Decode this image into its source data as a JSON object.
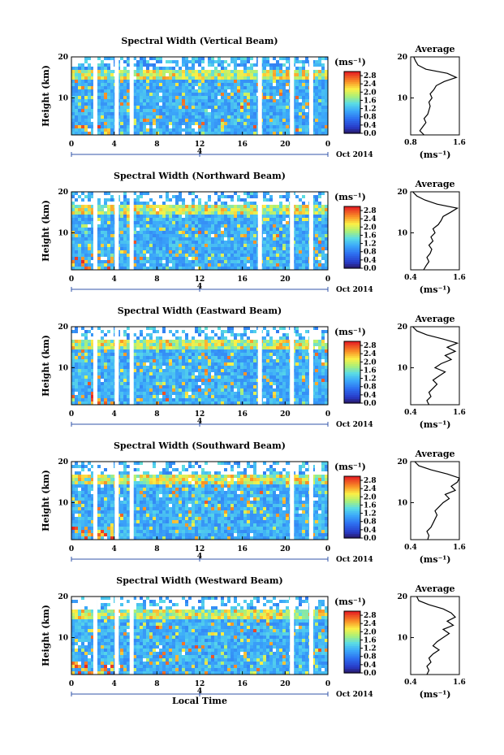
{
  "chart_data": [
    {
      "type": "heatmap",
      "title": "Spectral Width (Vertical Beam)",
      "ylabel": "Height (km)",
      "x_ticks": [
        "0",
        "4",
        "8",
        "12",
        "16",
        "20",
        "0"
      ],
      "y_ticks": [
        "10",
        "20"
      ],
      "xlim": [
        0,
        24
      ],
      "ylim": [
        1,
        20
      ],
      "colorbar": {
        "unit": "(ms⁻¹)",
        "ticks": [
          "2.8",
          "2.4",
          "2.0",
          "1.6",
          "1.2",
          "0.8",
          "0.4",
          "0.0"
        ],
        "range": [
          0,
          3.0
        ]
      },
      "date_ticks": [
        "4"
      ],
      "date_label": "Oct 2014",
      "data_gaps_hours": [
        2.2,
        4.2,
        5.6,
        17.6,
        20.6,
        22.4
      ],
      "average_profile": {
        "title": "Average",
        "xlabel": "(ms⁻¹)",
        "x_ticks": [
          "0.8",
          "1.6"
        ],
        "y_ticks": [
          "10",
          "20"
        ],
        "xlim": [
          0.8,
          1.6
        ],
        "heights": [
          1,
          2,
          3,
          4,
          5,
          6,
          7,
          8,
          9,
          10,
          11,
          12,
          13,
          14,
          15,
          16,
          17,
          18,
          19,
          20
        ],
        "values": [
          1.02,
          0.95,
          1.0,
          1.05,
          1.02,
          1.08,
          1.1,
          1.12,
          1.1,
          1.15,
          1.12,
          1.18,
          1.22,
          1.35,
          1.55,
          1.4,
          1.05,
          0.92,
          0.88,
          0.85
        ]
      }
    },
    {
      "type": "heatmap",
      "title": "Spectral Width (Northward Beam)",
      "ylabel": "Height (km)",
      "x_ticks": [
        "0",
        "4",
        "8",
        "12",
        "16",
        "20",
        "0"
      ],
      "y_ticks": [
        "10",
        "20"
      ],
      "xlim": [
        0,
        24
      ],
      "ylim": [
        1,
        20
      ],
      "colorbar": {
        "unit": "(ms⁻¹)",
        "ticks": [
          "2.8",
          "2.4",
          "2.0",
          "1.6",
          "1.2",
          "0.8",
          "0.4",
          "0.0"
        ],
        "range": [
          0,
          3.0
        ]
      },
      "date_ticks": [
        "4"
      ],
      "date_label": "Oct 2014",
      "data_gaps_hours": [
        2.2,
        4.2,
        5.6,
        17.6,
        20.6,
        22.4
      ],
      "average_profile": {
        "title": "Average",
        "xlabel": "(ms⁻¹)",
        "x_ticks": [
          "0.4",
          "1.6"
        ],
        "y_ticks": [
          "10",
          "20"
        ],
        "xlim": [
          0.4,
          1.6
        ],
        "heights": [
          1,
          2,
          3,
          4,
          5,
          6,
          7,
          8,
          9,
          10,
          11,
          12,
          13,
          14,
          15,
          16,
          17,
          18,
          19,
          20
        ],
        "values": [
          0.72,
          0.78,
          0.85,
          0.8,
          0.88,
          0.92,
          0.85,
          0.95,
          0.9,
          1.0,
          0.95,
          1.08,
          1.15,
          1.2,
          1.38,
          1.55,
          1.05,
          0.75,
          0.55,
          0.45
        ]
      }
    },
    {
      "type": "heatmap",
      "title": "Spectral Width (Eastward Beam)",
      "ylabel": "Height (km)",
      "x_ticks": [
        "0",
        "4",
        "8",
        "12",
        "16",
        "20",
        "0"
      ],
      "y_ticks": [
        "10",
        "20"
      ],
      "xlim": [
        0,
        24
      ],
      "ylim": [
        1,
        20
      ],
      "colorbar": {
        "unit": "(ms⁻¹)",
        "ticks": [
          "2.8",
          "2.4",
          "2.0",
          "1.6",
          "1.2",
          "0.8",
          "0.4",
          "0.0"
        ],
        "range": [
          0,
          3.0
        ]
      },
      "date_ticks": [
        "4"
      ],
      "date_label": "Oct 2014",
      "data_gaps_hours": [
        2.2,
        4.2,
        5.6,
        17.6,
        20.6,
        22.4
      ],
      "average_profile": {
        "title": "Average",
        "xlabel": "(ms⁻¹)",
        "x_ticks": [
          "0.4",
          "1.6"
        ],
        "y_ticks": [
          "10",
          "20"
        ],
        "xlim": [
          0.4,
          1.6
        ],
        "heights": [
          1,
          2,
          3,
          4,
          5,
          6,
          7,
          8,
          9,
          10,
          11,
          12,
          13,
          14,
          15,
          16,
          17,
          18,
          19,
          20
        ],
        "values": [
          0.85,
          0.8,
          0.9,
          0.85,
          0.95,
          1.05,
          0.95,
          1.1,
          1.25,
          1.0,
          1.15,
          1.4,
          1.25,
          1.5,
          1.3,
          1.55,
          1.2,
          0.8,
          0.55,
          0.45
        ]
      }
    },
    {
      "type": "heatmap",
      "title": "Spectral Width (Southward Beam)",
      "ylabel": "Height (km)",
      "x_ticks": [
        "0",
        "4",
        "8",
        "12",
        "16",
        "20",
        "0"
      ],
      "y_ticks": [
        "10",
        "20"
      ],
      "xlim": [
        0,
        24
      ],
      "ylim": [
        1,
        20
      ],
      "colorbar": {
        "unit": "(ms⁻¹)",
        "ticks": [
          "2.8",
          "2.4",
          "2.0",
          "1.6",
          "1.2",
          "0.8",
          "0.4",
          "0.0"
        ],
        "range": [
          0,
          3.0
        ]
      },
      "date_ticks": [
        "4"
      ],
      "date_label": "Oct 2014",
      "data_gaps_hours": [
        2.2,
        4.2,
        5.6,
        20.6,
        22.4
      ],
      "average_profile": {
        "title": "Average",
        "xlabel": "(ms⁻¹)",
        "x_ticks": [
          "0.4",
          "1.6"
        ],
        "y_ticks": [
          "10",
          "20"
        ],
        "xlim": [
          0.4,
          1.6
        ],
        "heights": [
          1,
          2,
          3,
          4,
          5,
          6,
          7,
          8,
          9,
          10,
          11,
          12,
          13,
          14,
          15,
          16,
          17,
          18,
          19,
          20
        ],
        "values": [
          0.82,
          0.85,
          0.8,
          0.9,
          0.95,
          1.0,
          1.05,
          1.0,
          1.1,
          1.2,
          1.35,
          1.25,
          1.5,
          1.4,
          1.55,
          1.6,
          1.3,
          0.9,
          0.6,
          0.5
        ]
      }
    },
    {
      "type": "heatmap",
      "title": "Spectral Width (Westward Beam)",
      "ylabel": "Height (km)",
      "xlabel": "Local Time",
      "x_ticks": [
        "0",
        "4",
        "8",
        "12",
        "16",
        "20",
        "0"
      ],
      "y_ticks": [
        "10",
        "20"
      ],
      "xlim": [
        0,
        24
      ],
      "ylim": [
        1,
        20
      ],
      "colorbar": {
        "unit": "(ms⁻¹)",
        "ticks": [
          "2.8",
          "2.4",
          "2.0",
          "1.6",
          "1.2",
          "0.8",
          "0.4",
          "0.0"
        ],
        "range": [
          0,
          3.0
        ]
      },
      "date_ticks": [
        "4"
      ],
      "date_label": "Oct 2014",
      "data_gaps_hours": [
        2.2,
        4.2,
        5.6,
        20.6,
        22.4
      ],
      "average_profile": {
        "title": "Average",
        "xlabel": "(ms⁻¹)",
        "x_ticks": [
          "0.4",
          "1.6"
        ],
        "y_ticks": [
          "10",
          "20"
        ],
        "xlim": [
          0.4,
          1.6
        ],
        "heights": [
          1,
          2,
          3,
          4,
          5,
          6,
          7,
          8,
          9,
          10,
          11,
          12,
          13,
          14,
          15,
          16,
          17,
          18,
          19,
          20
        ],
        "values": [
          0.8,
          0.85,
          0.8,
          0.9,
          0.85,
          0.95,
          1.1,
          0.95,
          1.05,
          1.2,
          1.35,
          1.2,
          1.45,
          1.3,
          1.5,
          1.4,
          1.2,
          0.85,
          0.6,
          0.55
        ]
      }
    }
  ]
}
